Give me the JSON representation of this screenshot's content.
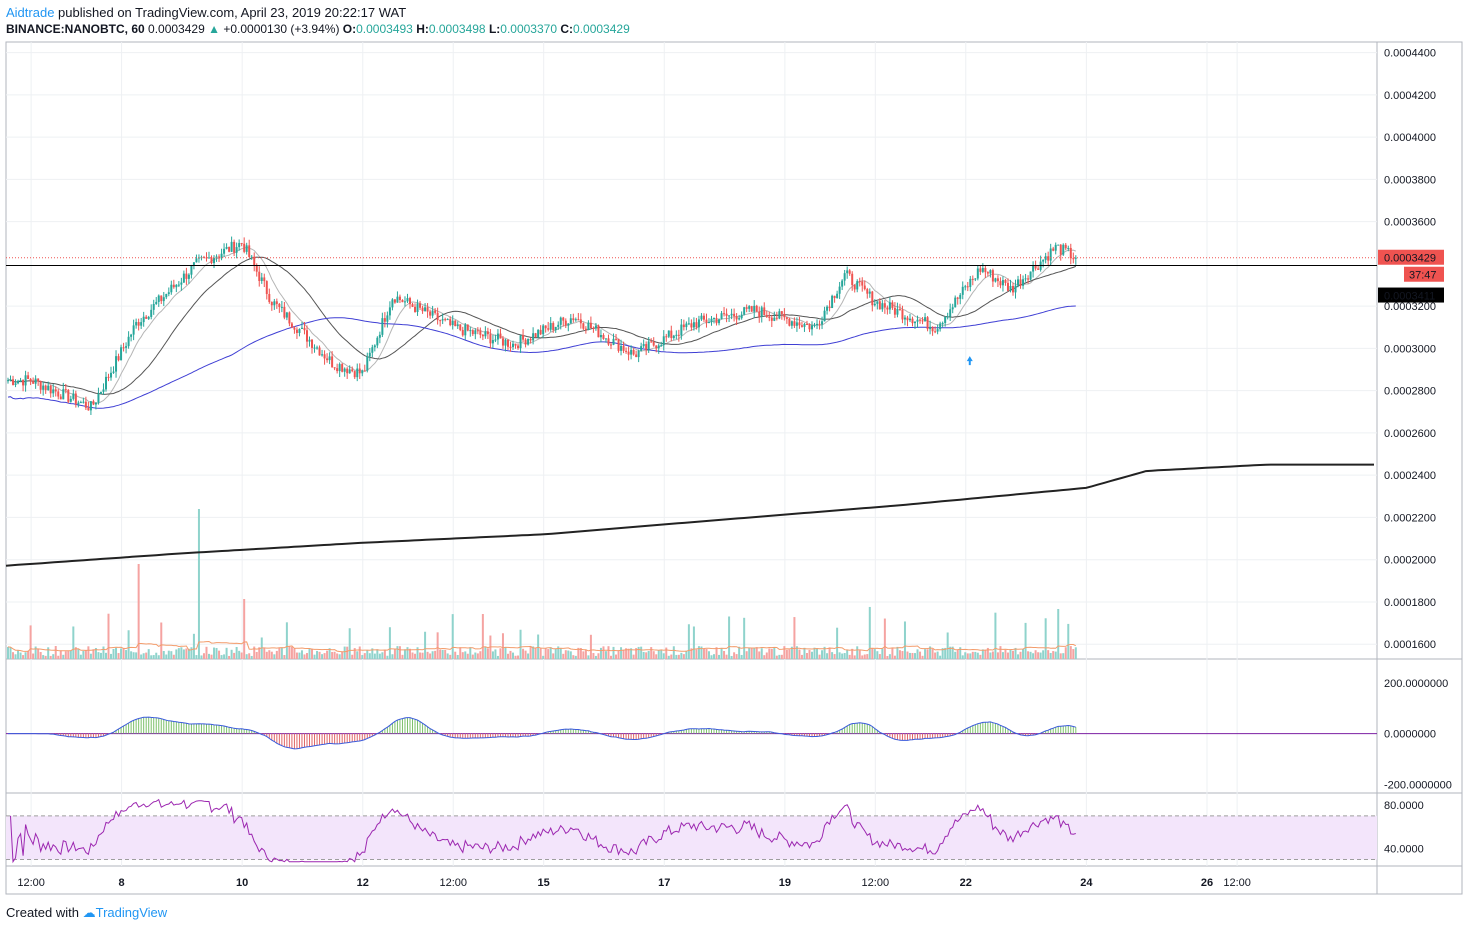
{
  "header": {
    "author": "Aidtrade",
    "published_text": "published on TradingView.com, April 23, 2019 20:22:17 WAT"
  },
  "symbol_line": {
    "symbol": "BINANCE:NANOBTC, 60",
    "last": "0.0003429",
    "change": "+0.0000130 (+3.94%)",
    "o_label": "O:",
    "o_value": "0.0003493",
    "h_label": "H:",
    "h_value": "0.0003498",
    "l_label": "L:",
    "l_value": "0.0003370",
    "c_label": "C:",
    "c_value": "0.0003429"
  },
  "footer": {
    "created_with": "Created with",
    "brand": "TradingView"
  },
  "colors": {
    "up": "#26a69a",
    "down": "#ef5350",
    "ma_gray": "#555555",
    "ma_light": "#b5b5b5",
    "ma_blue": "#3f3fd4",
    "ma_long": "#222222",
    "macd_line": "#3b5bdb",
    "rsi_line": "#9c27b0",
    "rsi_band": "#f3e5fb",
    "vol_ma": "#f39c6b"
  },
  "chart_data": [
    {
      "type": "line",
      "title": "BINANCE:NANOBTC, 60",
      "y_ticks": [
        "0.0004400",
        "0.0004200",
        "0.0004000",
        "0.0003800",
        "0.0003600",
        "0.0003200",
        "0.0003000",
        "0.0002800",
        "0.0002600",
        "0.0002400",
        "0.0002200",
        "0.0002000",
        "0.0001800",
        "0.0001600"
      ],
      "ylim": [
        0.000153,
        0.000445
      ],
      "x_ticks": [
        "12:00",
        "8",
        "10",
        "12",
        "12:00",
        "15",
        "17",
        "19",
        "12:00",
        "22",
        "24",
        "26",
        "12:00"
      ],
      "price_label": "0.0003429",
      "countdown_label": "37:47",
      "level_label": "0.0003411",
      "price_approx": [
        {
          "t": "Apr 6 12:00",
          "v": 0.000285
        },
        {
          "t": "Apr 7 12:00",
          "v": 0.000272
        },
        {
          "t": "Apr 8 06:00",
          "v": 0.000312
        },
        {
          "t": "Apr 9 06:00",
          "v": 0.00034
        },
        {
          "t": "Apr 10 00:00",
          "v": 0.00035
        },
        {
          "t": "Apr 10 12:00",
          "v": 0.000322
        },
        {
          "t": "Apr 11 12:00",
          "v": 0.000293
        },
        {
          "t": "Apr 12 00:00",
          "v": 0.000288
        },
        {
          "t": "Apr 12 12:00",
          "v": 0.000325
        },
        {
          "t": "Apr 13 12:00",
          "v": 0.00031
        },
        {
          "t": "Apr 14 12:00",
          "v": 0.000302
        },
        {
          "t": "Apr 15 12:00",
          "v": 0.000315
        },
        {
          "t": "Apr 16 12:00",
          "v": 0.000297
        },
        {
          "t": "Apr 17 12:00",
          "v": 0.000312
        },
        {
          "t": "Apr 18 12:00",
          "v": 0.000318
        },
        {
          "t": "Apr 19 12:00",
          "v": 0.00031
        },
        {
          "t": "Apr 20 00:00",
          "v": 0.000335
        },
        {
          "t": "Apr 20 12:00",
          "v": 0.000322
        },
        {
          "t": "Apr 21 12:00",
          "v": 0.00031
        },
        {
          "t": "Apr 22 06:00",
          "v": 0.000338
        },
        {
          "t": "Apr 22 18:00",
          "v": 0.000328
        },
        {
          "t": "Apr 23 12:00",
          "v": 0.000348
        },
        {
          "t": "Apr 23 20:00",
          "v": 0.0003429
        }
      ],
      "long_ma_approx": [
        {
          "t": "Apr 6 00:00",
          "v": 0.000197
        },
        {
          "t": "Apr 9 00:00",
          "v": 0.000203
        },
        {
          "t": "Apr 12 00:00",
          "v": 0.000208
        },
        {
          "t": "Apr 15 00:00",
          "v": 0.000212
        },
        {
          "t": "Apr 18 00:00",
          "v": 0.000219
        },
        {
          "t": "Apr 21 00:00",
          "v": 0.000226
        },
        {
          "t": "Apr 24 00:00",
          "v": 0.000234
        },
        {
          "t": "Apr 25 00:00",
          "v": 0.000242
        },
        {
          "t": "Apr 27 00:00",
          "v": 0.000245
        }
      ],
      "marker": {
        "t": "Apr 22 00:00",
        "symbol": "up-arrow",
        "v": 0.000294
      }
    },
    {
      "type": "bar",
      "title": "MACD",
      "y_ticks": [
        "200.0000000",
        "0.0000000",
        "-200.0000000"
      ],
      "ylim": [
        -230,
        290
      ]
    },
    {
      "type": "line",
      "title": "RSI",
      "y_ticks": [
        "80.0000",
        "40.0000"
      ],
      "ylim": [
        25,
        90
      ],
      "band": [
        30,
        70
      ]
    }
  ]
}
